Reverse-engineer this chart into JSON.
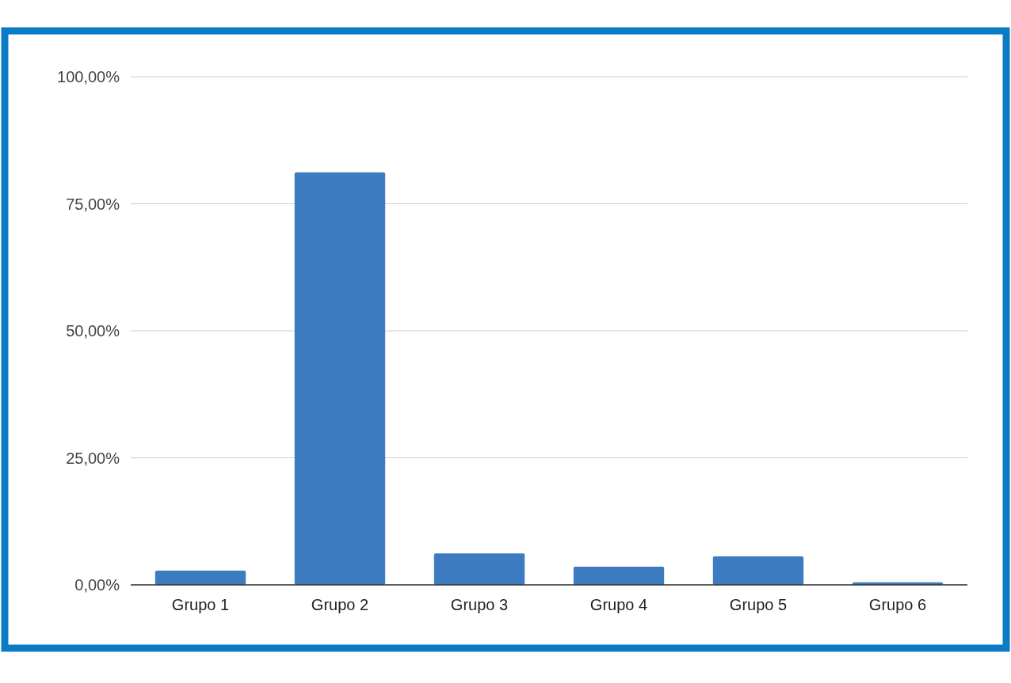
{
  "chart_data": {
    "type": "bar",
    "categories": [
      "Grupo 1",
      "Grupo 2",
      "Grupo 3",
      "Grupo 4",
      "Grupo 5",
      "Grupo 6"
    ],
    "values": [
      2.8,
      81.2,
      6.2,
      3.6,
      5.6,
      0.5
    ],
    "color": "#3d7cc0",
    "ylim": [
      0,
      100
    ],
    "yticks": [
      {
        "value": 0,
        "label": "0,00%"
      },
      {
        "value": 25,
        "label": "25,00%"
      },
      {
        "value": 50,
        "label": "50,00%"
      },
      {
        "value": 75,
        "label": "75,00%"
      },
      {
        "value": 100,
        "label": "100,00%"
      }
    ],
    "grid": "y"
  }
}
